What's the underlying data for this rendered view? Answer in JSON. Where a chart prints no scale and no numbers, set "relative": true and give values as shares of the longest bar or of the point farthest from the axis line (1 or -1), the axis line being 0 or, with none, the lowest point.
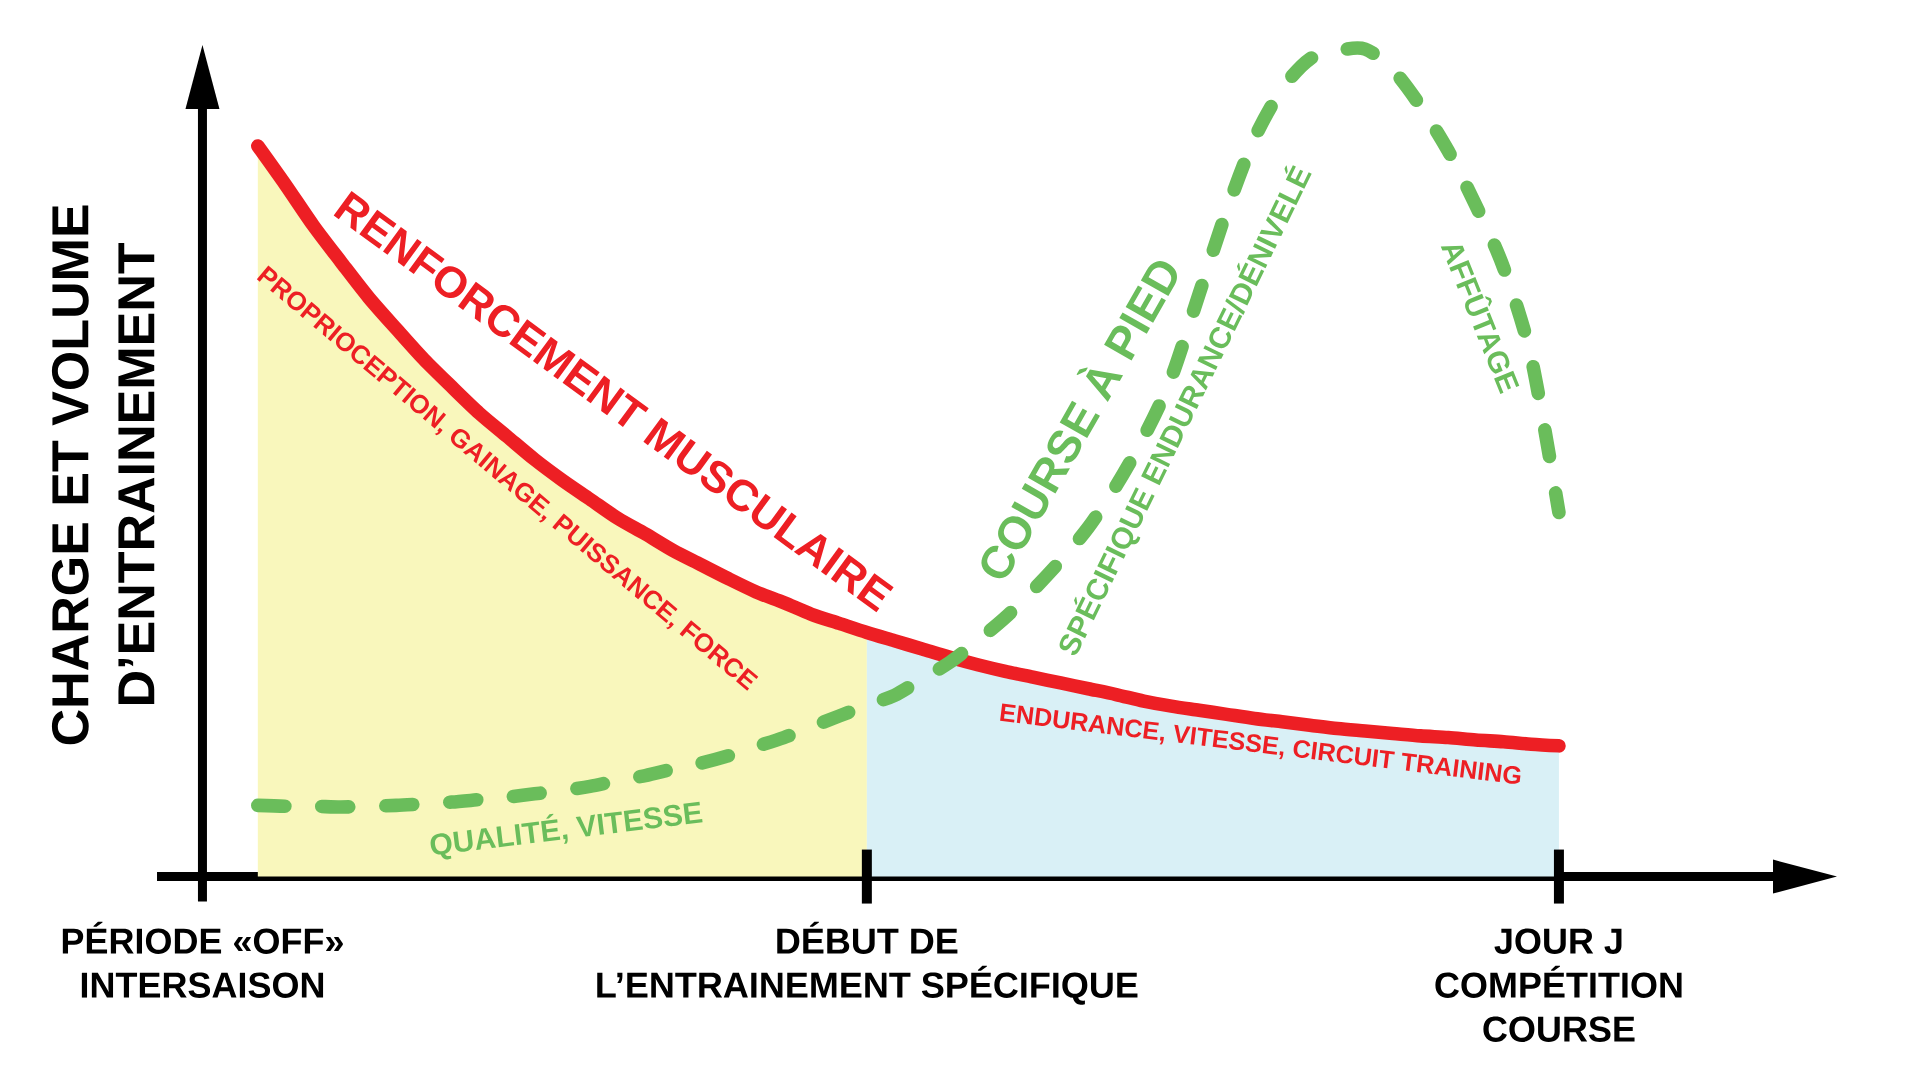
{
  "chart_data": {
    "type": "line",
    "relative": true,
    "ylabel": "CHARGE ET VOLUME D’ENTRAINEMENT",
    "categories": [
      "PÉRIODE «OFF» INTERSAISON",
      null,
      null,
      null,
      null,
      null,
      null,
      null,
      null,
      null,
      null,
      null,
      null,
      null,
      null,
      null,
      null,
      null,
      null,
      null,
      null,
      null,
      null,
      null,
      "DÉBUT DE L’ENTRAINEMENT SPÉCIFIQUE",
      null,
      null,
      null,
      null,
      null,
      null,
      null,
      null,
      null,
      null,
      null,
      null,
      null,
      null,
      null,
      null,
      null,
      null,
      null,
      null,
      null,
      null,
      null,
      null,
      "JOUR J COMPÉTITION COURSE"
    ],
    "tick_labels": "x",
    "series": [
      {
        "type": "area",
        "color": "#f9f7bc",
        "values": [
          null,
          null,
          0.883,
          0.836,
          0.787,
          0.743,
          0.7,
          0.662,
          0.625,
          0.592,
          0.56,
          0.532,
          0.504,
          0.479,
          0.456,
          0.433,
          0.414,
          0.394,
          0.377,
          0.36,
          0.344,
          0.331,
          0.317,
          0.306,
          0.295,
          null,
          null,
          null,
          null,
          null,
          null,
          null,
          null,
          null,
          null,
          null,
          null,
          null,
          null,
          null,
          null,
          null,
          null,
          null,
          null,
          null,
          null,
          null,
          null,
          null
        ]
      },
      {
        "type": "area",
        "color": "#d9f0f6",
        "values": [
          null,
          null,
          null,
          null,
          null,
          null,
          null,
          null,
          null,
          null,
          null,
          null,
          null,
          null,
          null,
          null,
          null,
          null,
          null,
          null,
          null,
          null,
          null,
          null,
          0.295,
          0.285,
          0.275,
          0.265,
          0.256,
          0.248,
          0.241,
          0.234,
          0.227,
          0.22,
          0.212,
          0.206,
          0.201,
          0.196,
          0.191,
          0.187,
          0.183,
          0.179,
          0.176,
          0.173,
          0.17,
          0.168,
          0.165,
          0.163,
          0.16,
          0.158
        ]
      },
      {
        "name": "RENFORCEMENT MUSCULAIRE",
        "color": "#ed1f24",
        "line_style": "solid",
        "values": [
          null,
          null,
          0.883,
          0.836,
          0.787,
          0.743,
          0.7,
          0.662,
          0.625,
          0.592,
          0.56,
          0.532,
          0.504,
          0.479,
          0.456,
          0.433,
          0.414,
          0.394,
          0.377,
          0.36,
          0.344,
          0.331,
          0.317,
          0.306,
          0.295,
          0.285,
          0.275,
          0.265,
          0.256,
          0.248,
          0.241,
          0.234,
          0.227,
          0.22,
          0.212,
          0.206,
          0.201,
          0.196,
          0.191,
          0.187,
          0.183,
          0.179,
          0.176,
          0.173,
          0.17,
          0.168,
          0.165,
          0.163,
          0.16,
          0.158
        ]
      },
      {
        "name": "COURSE À PIED",
        "color": "#6abd5b",
        "line_style": "dashed",
        "values": [
          null,
          null,
          0.086,
          0.085,
          0.085,
          0.084,
          0.085,
          0.086,
          0.088,
          0.09,
          0.093,
          0.096,
          0.1,
          0.104,
          0.109,
          0.116,
          0.122,
          0.13,
          0.137,
          0.146,
          0.157,
          0.168,
          0.181,
          0.194,
          0.207,
          0.219,
          0.239,
          0.259,
          0.285,
          0.313,
          0.346,
          0.382,
          0.422,
          0.472,
          0.531,
          0.603,
          0.704,
          0.805,
          0.892,
          0.952,
          0.988,
          0.998,
          1.0,
          0.975,
          0.931,
          0.877,
          0.811,
          0.736,
          0.627,
          0.44
        ]
      }
    ],
    "annotations": [
      "PROPRIOCEPTION, GAINAGE, PUISSANCE, FORCE",
      "QUALITÉ, VITESSE",
      "SPÉCIFIQUE ENDURANCE/DÉNIVELÉ",
      "AFFÛTAGE",
      "ENDURANCE, VITESSE, CIRCUIT TRAINING"
    ]
  }
}
